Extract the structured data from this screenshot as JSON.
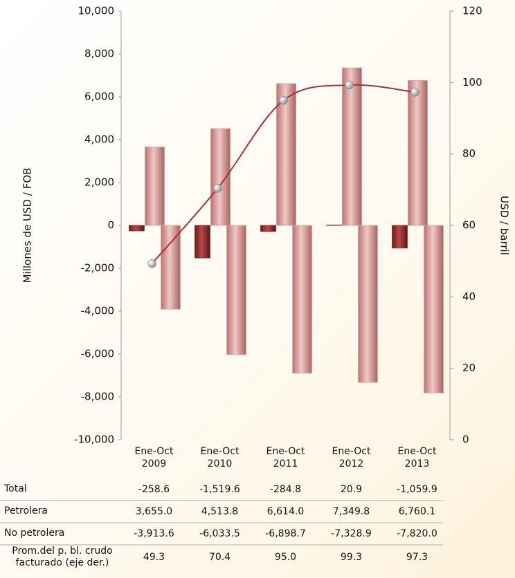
{
  "chart_data": {
    "type": "bar",
    "y_label": "Millones de USD / FOB",
    "y2_label": "USD / barril",
    "categories": [
      "Ene-Oct 2009",
      "Ene-Oct 2010",
      "Ene-Oct 2011",
      "Ene-Oct 2012",
      "Ene-Oct 2013"
    ],
    "series": [
      {
        "name": "Total",
        "color": "#8b2a2a",
        "values": [
          -258.6,
          -1519.6,
          -284.8,
          20.9,
          -1059.9
        ],
        "value_labels": [
          "-258.6",
          "-1,519.6",
          "-284.8",
          "20.9",
          "-1,059.9"
        ]
      },
      {
        "name": "Petrolera",
        "color": "#d49a98",
        "values": [
          3655.0,
          4513.8,
          6614.0,
          7349.8,
          6760.1
        ],
        "value_labels": [
          "3,655.0",
          "4,513.8",
          "6,614.0",
          "7,349.8",
          "6,760.1"
        ]
      },
      {
        "name": "No petrolera",
        "color": "#e0aaa8",
        "values": [
          -3913.6,
          -6033.5,
          -6898.7,
          -7328.9,
          -7820.0
        ],
        "value_labels": [
          "-3,913.6",
          "-6,033.5",
          "-6,898.7",
          "-7,328.9",
          "-7,820.0"
        ]
      },
      {
        "name": "Prom.del p. bl. crudo facturado (eje der.)",
        "color": "#a83232",
        "axis": "y2",
        "type": "line",
        "values": [
          49.3,
          70.4,
          95.0,
          99.3,
          97.3
        ],
        "value_labels": [
          "49.3",
          "70.4",
          "95.0",
          "99.3",
          "97.3"
        ]
      }
    ],
    "ylim": [
      -10000,
      10000
    ],
    "yticks": [
      {
        "value": -10000,
        "label": "-10,000"
      },
      {
        "value": -8000,
        "label": "-8,000"
      },
      {
        "value": -6000,
        "label": "-6,000"
      },
      {
        "value": -4000,
        "label": "-4,000"
      },
      {
        "value": -2000,
        "label": "-2,000"
      },
      0,
      {
        "value": 2000,
        "label": "2,000"
      },
      {
        "value": 4000,
        "label": "4,000"
      },
      {
        "value": 6000,
        "label": "6,000"
      },
      {
        "value": 8000,
        "label": "8,000"
      },
      {
        "value": 10000,
        "label": "10,000"
      }
    ],
    "y2lim": [
      0,
      120
    ],
    "y2ticks": [
      0,
      20,
      40,
      60,
      80,
      100,
      120
    ],
    "grid": false
  }
}
